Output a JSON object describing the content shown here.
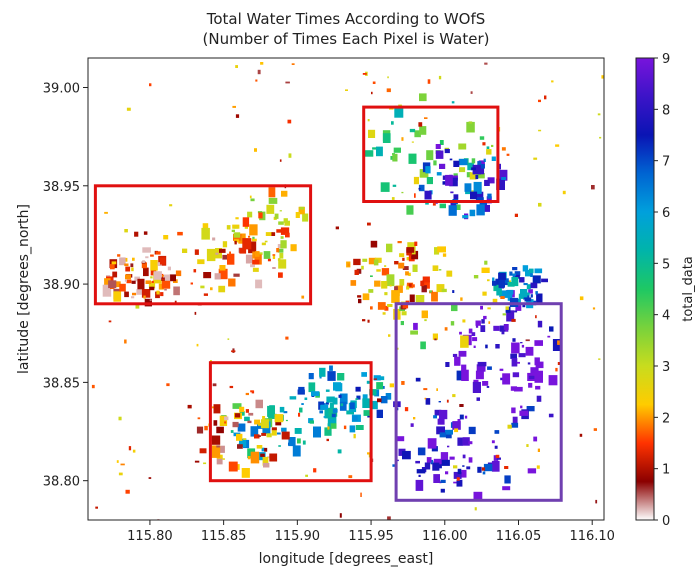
{
  "chart_data": {
    "type": "heatmap",
    "title_line1": "Total Water Times According to WOfS",
    "title_line2": "(Number of Times Each Pixel is Water)",
    "xlabel": "longitude [degrees_east]",
    "ylabel": "latitude [degrees_north]",
    "xlim": [
      115.758,
      116.108
    ],
    "ylim": [
      38.78,
      39.015
    ],
    "x_ticks": [
      115.8,
      115.85,
      115.9,
      115.95,
      116.0,
      116.05,
      116.1
    ],
    "x_tick_labels": [
      "115.80",
      "115.85",
      "115.90",
      "115.95",
      "116.00",
      "116.05",
      "116.10"
    ],
    "y_ticks": [
      38.8,
      38.85,
      38.9,
      38.95,
      39.0
    ],
    "y_tick_labels": [
      "38.80",
      "38.85",
      "38.90",
      "38.95",
      "39.00"
    ],
    "colorbar": {
      "label": "total_data",
      "min": 0,
      "max": 9,
      "ticks": [
        0,
        1,
        2,
        3,
        4,
        5,
        6,
        7,
        8,
        9
      ],
      "tick_labels": [
        "0",
        "1",
        "2",
        "3",
        "4",
        "5",
        "6",
        "7",
        "8",
        "9"
      ],
      "colormap_stops": [
        "#ffffff",
        "#8b0000",
        "#ff3300",
        "#ffcc00",
        "#c8dc1e",
        "#78d23c",
        "#1ec864",
        "#00b4aa",
        "#00a0dc",
        "#0064d2",
        "#0a14b4",
        "#3c14c8",
        "#7814dc"
      ]
    },
    "highlight_boxes": [
      {
        "name": "box-west",
        "color": "#e01010",
        "x": [
          115.763,
          115.909
        ],
        "y": [
          38.89,
          38.95
        ]
      },
      {
        "name": "box-north",
        "color": "#e01010",
        "x": [
          115.945,
          116.036
        ],
        "y": [
          38.942,
          38.99
        ]
      },
      {
        "name": "box-southwest",
        "color": "#e01010",
        "x": [
          115.841,
          115.95
        ],
        "y": [
          38.8,
          38.86
        ]
      },
      {
        "name": "box-southeast",
        "color": "#7040b0",
        "x": [
          115.967,
          116.079
        ],
        "y": [
          38.79,
          38.89
        ]
      }
    ],
    "water_regions": [
      {
        "x": 115.835,
        "y": 38.915,
        "w": 0.06,
        "h": 0.018,
        "v": 1.5
      },
      {
        "x": 115.88,
        "y": 38.93,
        "w": 0.025,
        "h": 0.02,
        "v": 2.5
      },
      {
        "x": 115.79,
        "y": 38.905,
        "w": 0.025,
        "h": 0.015,
        "v": 1.0
      },
      {
        "x": 115.99,
        "y": 38.968,
        "w": 0.045,
        "h": 0.03,
        "v": 4.0
      },
      {
        "x": 116.01,
        "y": 38.955,
        "w": 0.03,
        "h": 0.02,
        "v": 7.5
      },
      {
        "x": 115.895,
        "y": 38.83,
        "w": 0.05,
        "h": 0.02,
        "v": 5.5
      },
      {
        "x": 115.86,
        "y": 38.825,
        "w": 0.03,
        "h": 0.02,
        "v": 1.5
      },
      {
        "x": 115.93,
        "y": 38.845,
        "w": 0.03,
        "h": 0.015,
        "v": 6.0
      },
      {
        "x": 116.02,
        "y": 38.85,
        "w": 0.06,
        "h": 0.06,
        "v": 8.5
      },
      {
        "x": 116.04,
        "y": 38.865,
        "w": 0.035,
        "h": 0.03,
        "v": 9.0
      },
      {
        "x": 116.0,
        "y": 38.815,
        "w": 0.04,
        "h": 0.02,
        "v": 8.0
      },
      {
        "x": 115.995,
        "y": 38.895,
        "w": 0.05,
        "h": 0.025,
        "v": 3.0
      },
      {
        "x": 115.96,
        "y": 38.905,
        "w": 0.03,
        "h": 0.02,
        "v": 2.0
      },
      {
        "x": 116.05,
        "y": 38.9,
        "w": 0.02,
        "h": 0.01,
        "v": 6.5
      }
    ]
  }
}
